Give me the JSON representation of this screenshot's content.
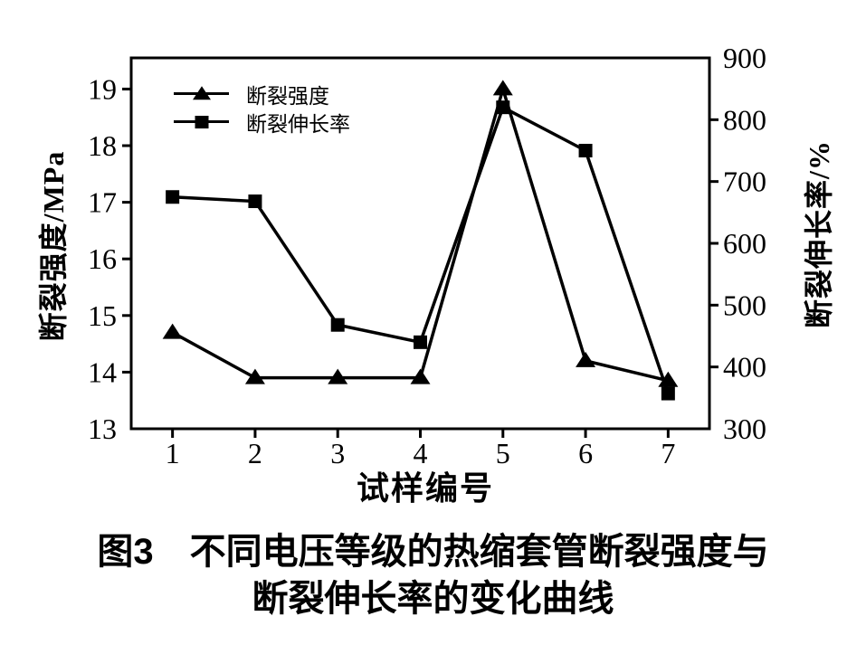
{
  "figure": {
    "caption_line1": "图3　不同电压等级的热缩套管断裂强度与",
    "caption_line2": "断裂伸长率的变化曲线"
  },
  "chart_data": {
    "type": "line",
    "title": "",
    "xlabel": "试样编号",
    "x": [
      1,
      2,
      3,
      4,
      5,
      6,
      7
    ],
    "xlim": [
      0.5,
      7.5
    ],
    "x_ticks": [
      1,
      2,
      3,
      4,
      5,
      6,
      7
    ],
    "left_axis": {
      "label": "断裂强度/MPa",
      "lim": [
        13,
        19.55
      ],
      "ticks": [
        13,
        14,
        15,
        16,
        17,
        18,
        19
      ]
    },
    "right_axis": {
      "label": "断裂伸长率/%",
      "lim": [
        300,
        900
      ],
      "ticks": [
        300,
        400,
        500,
        600,
        700,
        800,
        900
      ]
    },
    "series": [
      {
        "name": "断裂强度",
        "axis": "left",
        "marker": "triangle",
        "values": [
          14.7,
          13.9,
          13.9,
          13.9,
          19.0,
          14.2,
          13.85
        ]
      },
      {
        "name": "断裂伸长率",
        "axis": "right",
        "marker": "square",
        "values": [
          675,
          668,
          468,
          440,
          820,
          750,
          357
        ]
      }
    ],
    "legend": {
      "position": "upper-left",
      "entries": [
        "断裂强度",
        "断裂伸长率"
      ]
    },
    "grid": false,
    "colors": {
      "foreground": "#000000",
      "background": "#ffffff"
    }
  }
}
